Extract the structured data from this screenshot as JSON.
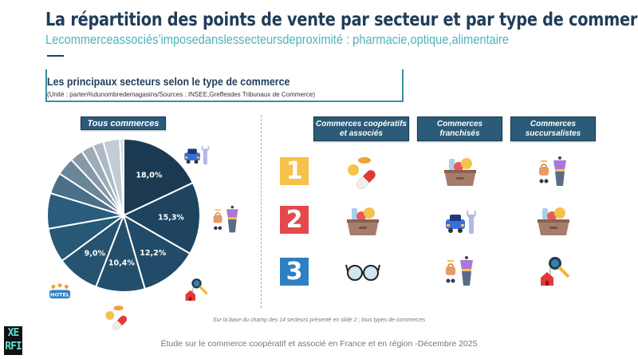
{
  "header": {
    "title": "La répartition des points de vente par secteur et par type de commerce",
    "subtitle": "Lecommerceassociés’imposedanslessecteursdeproximité : pharmacie,optique,alimentaire"
  },
  "box": {
    "title": "Les principaux secteurs selon le type de commerce",
    "unit": "(Unité : parten%dunombredemagasins/Sources : INSEE,Greffesdes Tribunaux de Commerce)"
  },
  "chart_data": {
    "type": "pie",
    "title": "Tous commerces",
    "values": [
      18.0,
      15.3,
      12.2,
      10.4,
      9.0,
      7.3,
      7.5,
      4.5,
      3.8,
      2.8,
      2.6,
      2.3,
      3.5,
      0.8
    ],
    "labels": [
      "18,0%",
      "15,3%",
      "12,2%",
      "10,4%",
      "9,0%",
      "",
      "",
      "",
      "",
      "",
      "",
      "",
      "",
      ""
    ],
    "slice_icons": [
      "car-repair-icon",
      "fashion-icon",
      "real-estate-keys-icon",
      "pharmacy-pills-icon",
      "hotel-icon"
    ],
    "colors": [
      "#1b3a52",
      "#1e4460",
      "#214b68",
      "#234f6c",
      "#255370",
      "#275876",
      "#2a5d7b",
      "#4a6f88",
      "#6b8599",
      "#8798a8",
      "#9eacb9",
      "#adb9c4",
      "#c3cbd3",
      "#d3d9df"
    ]
  },
  "ranking": {
    "columns": [
      "Commerces coopératifs et associés",
      "Commerces franchisés",
      "Commerces succursalistes"
    ],
    "ranks": [
      {
        "label": "1",
        "color": "#f7c24a"
      },
      {
        "label": "2",
        "color": "#e5484d"
      },
      {
        "label": "3",
        "color": "#2f7fc4"
      }
    ],
    "rows": [
      [
        "pharmacy-pills-icon",
        "grocery-basket-icon",
        "fashion-icon"
      ],
      [
        "grocery-basket-icon",
        "car-repair-icon",
        "grocery-basket-icon"
      ],
      [
        "glasses-icon",
        "fashion-icon",
        "real-estate-keys-icon"
      ]
    ]
  },
  "footnote": "Sur la base du champ des 14 secteurs présenté en slide 2 ; tous types de commerces",
  "footer": "Étude sur le commerce coopératif et associé en France et en région -Décembre 2025",
  "logo": "XERFI"
}
